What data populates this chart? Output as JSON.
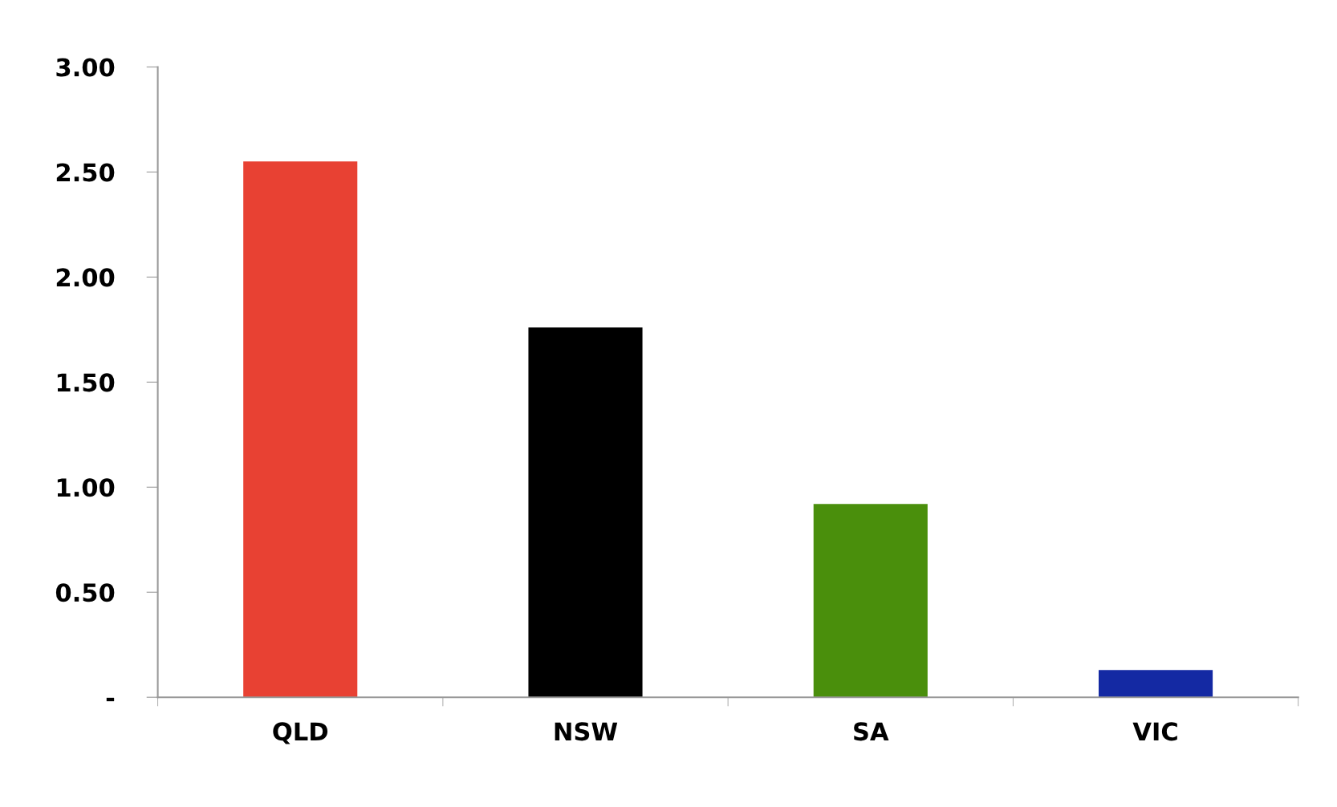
{
  "chart_data": {
    "type": "bar",
    "categories": [
      "QLD",
      "NSW",
      "SA",
      "VIC"
    ],
    "values": [
      2.55,
      1.76,
      0.92,
      0.13
    ],
    "colors": [
      "#e84133",
      "#000000",
      "#4a8f0c",
      "#1429a3"
    ],
    "ylim": [
      0,
      3
    ],
    "yticks": [
      {
        "value": 0,
        "label": "-"
      },
      {
        "value": 0.5,
        "label": "0.50"
      },
      {
        "value": 1,
        "label": "1.00"
      },
      {
        "value": 1.5,
        "label": "1.50"
      },
      {
        "value": 2,
        "label": "2.00"
      },
      {
        "value": 2.5,
        "label": "2.50"
      },
      {
        "value": 3,
        "label": "3.00"
      }
    ],
    "grid": false,
    "legend": false
  }
}
